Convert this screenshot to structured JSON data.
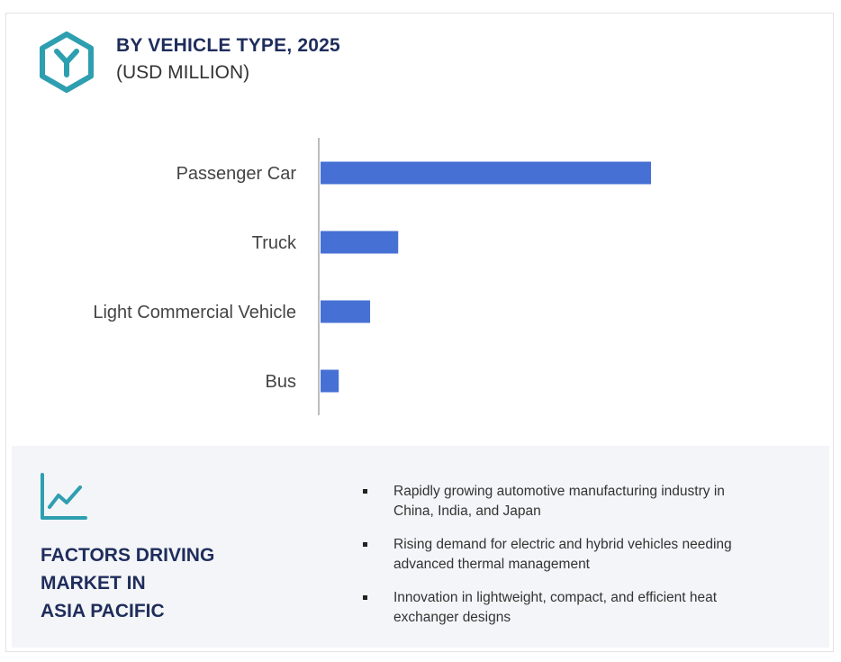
{
  "header": {
    "title": "BY VEHICLE TYPE, 2025",
    "subtitle": "(USD MILLION)"
  },
  "colors": {
    "bar": "#4670d4",
    "accent": "#2e9fb0",
    "heading": "#1f2d5c"
  },
  "icons": {
    "logo": "hexagon-y-logo-icon",
    "trend": "line-chart-trend-icon"
  },
  "chart_data": {
    "type": "bar",
    "orientation": "horizontal",
    "categories": [
      "Passenger Car",
      "Truck",
      "Light Commercial Vehicle",
      "Bus"
    ],
    "values": [
      100,
      23.5,
      15,
      5.5
    ],
    "xlim": [
      0,
      100
    ],
    "grid": false,
    "legend": "none",
    "xlabel": "",
    "ylabel": ""
  },
  "factors": {
    "heading_lines": [
      "FACTORS DRIVING",
      "MARKET IN",
      "ASIA PACIFIC"
    ],
    "items": [
      {
        "lines": [
          "Rapidly growing automotive manufacturing industry in",
          "China, India, and Japan"
        ]
      },
      {
        "lines": [
          "Rising demand for electric and hybrid vehicles needing",
          "advanced thermal management"
        ]
      },
      {
        "lines": [
          "Innovation in lightweight, compact, and efficient heat",
          "exchanger designs"
        ]
      }
    ]
  }
}
